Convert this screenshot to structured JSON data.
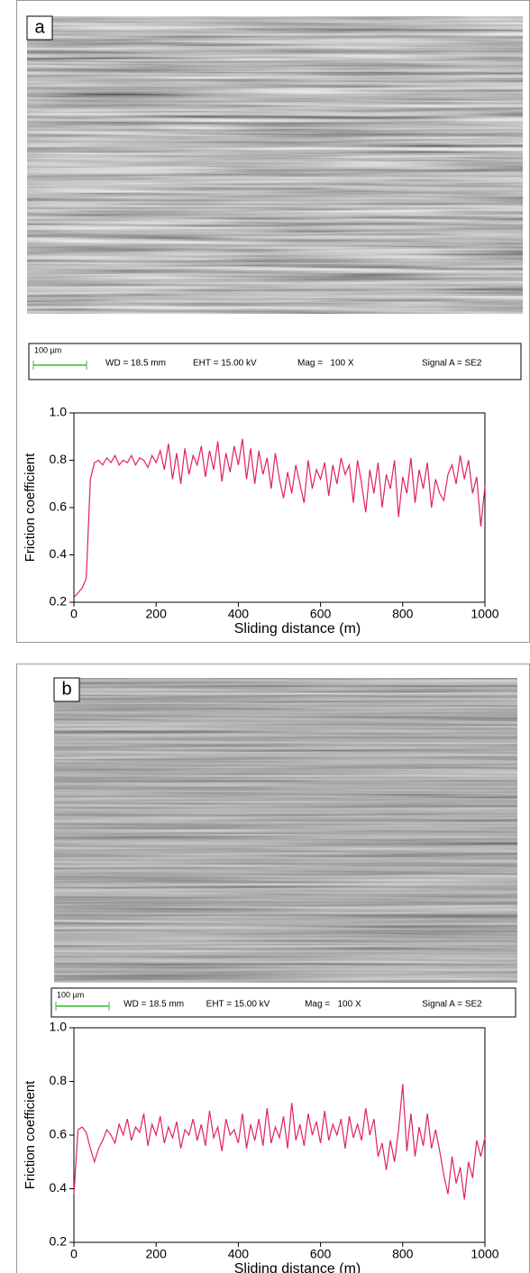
{
  "panels": [
    {
      "label": "a",
      "scale": "100 µm",
      "wd": "WD = 18.5 mm",
      "eht": "EHT = 15.00 kV",
      "mag": "Mag =   100 X",
      "signal": "Signal A = SE2"
    },
    {
      "label": "b",
      "scale": "100 µm",
      "wd": "WD = 18.5 mm",
      "eht": "EHT = 15.00 kV",
      "mag": "Mag =   100 X",
      "signal": "Signal A = SE2"
    }
  ],
  "chart_data": [
    {
      "type": "line",
      "y_label": "Friction coefficient",
      "x_label": "Sliding distance (m)",
      "color": "#e0206a",
      "xlim": [
        0,
        1000
      ],
      "ylim": [
        0.2,
        1
      ],
      "xticks": [
        0,
        200,
        400,
        600,
        800,
        1000
      ],
      "yticks": [
        0.2,
        0.4,
        0.6,
        0.8,
        {
          "value": 1,
          "label": "1.0"
        }
      ],
      "x": [
        0,
        10,
        20,
        30,
        40,
        50,
        60,
        70,
        80,
        90,
        100,
        110,
        120,
        130,
        140,
        150,
        160,
        170,
        180,
        190,
        200,
        210,
        220,
        230,
        240,
        250,
        260,
        270,
        280,
        290,
        300,
        310,
        320,
        330,
        340,
        350,
        360,
        370,
        380,
        390,
        400,
        410,
        420,
        430,
        440,
        450,
        460,
        470,
        480,
        490,
        500,
        510,
        520,
        530,
        540,
        550,
        560,
        570,
        580,
        590,
        600,
        610,
        620,
        630,
        640,
        650,
        660,
        670,
        680,
        690,
        700,
        710,
        720,
        730,
        740,
        750,
        760,
        770,
        780,
        790,
        800,
        810,
        820,
        830,
        840,
        850,
        860,
        870,
        880,
        890,
        900,
        910,
        920,
        930,
        940,
        950,
        960,
        970,
        980,
        990,
        1000
      ],
      "values": [
        0.22,
        0.24,
        0.26,
        0.3,
        0.72,
        0.79,
        0.8,
        0.78,
        0.81,
        0.79,
        0.82,
        0.78,
        0.8,
        0.79,
        0.82,
        0.78,
        0.81,
        0.8,
        0.77,
        0.82,
        0.79,
        0.84,
        0.76,
        0.87,
        0.72,
        0.83,
        0.7,
        0.85,
        0.74,
        0.82,
        0.78,
        0.86,
        0.73,
        0.84,
        0.76,
        0.88,
        0.71,
        0.83,
        0.75,
        0.86,
        0.78,
        0.89,
        0.72,
        0.85,
        0.7,
        0.84,
        0.74,
        0.81,
        0.68,
        0.83,
        0.72,
        0.64,
        0.75,
        0.66,
        0.78,
        0.7,
        0.62,
        0.8,
        0.68,
        0.76,
        0.72,
        0.79,
        0.65,
        0.78,
        0.7,
        0.81,
        0.74,
        0.78,
        0.62,
        0.8,
        0.7,
        0.58,
        0.76,
        0.66,
        0.79,
        0.6,
        0.74,
        0.68,
        0.8,
        0.56,
        0.73,
        0.66,
        0.81,
        0.62,
        0.76,
        0.68,
        0.79,
        0.6,
        0.72,
        0.66,
        0.63,
        0.74,
        0.78,
        0.7,
        0.82,
        0.72,
        0.8,
        0.66,
        0.73,
        0.52,
        0.69
      ]
    },
    {
      "type": "line",
      "y_label": "Friction coefficient",
      "x_label": "Sliding distance (m)",
      "color": "#e0206a",
      "xlim": [
        0,
        1000
      ],
      "ylim": [
        0.2,
        1
      ],
      "xticks": [
        0,
        200,
        400,
        600,
        800,
        1000
      ],
      "yticks": [
        0.2,
        0.4,
        0.6,
        0.8,
        {
          "value": 1,
          "label": "1.0"
        }
      ],
      "x": [
        0,
        10,
        20,
        30,
        40,
        50,
        60,
        70,
        80,
        90,
        100,
        110,
        120,
        130,
        140,
        150,
        160,
        170,
        180,
        190,
        200,
        210,
        220,
        230,
        240,
        250,
        260,
        270,
        280,
        290,
        300,
        310,
        320,
        330,
        340,
        350,
        360,
        370,
        380,
        390,
        400,
        410,
        420,
        430,
        440,
        450,
        460,
        470,
        480,
        490,
        500,
        510,
        520,
        530,
        540,
        550,
        560,
        570,
        580,
        590,
        600,
        610,
        620,
        630,
        640,
        650,
        660,
        670,
        680,
        690,
        700,
        710,
        720,
        730,
        740,
        750,
        760,
        770,
        780,
        790,
        800,
        810,
        820,
        830,
        840,
        850,
        860,
        870,
        880,
        890,
        900,
        910,
        920,
        930,
        940,
        950,
        960,
        970,
        980,
        990,
        1000
      ],
      "values": [
        0.38,
        0.62,
        0.63,
        0.61,
        0.55,
        0.5,
        0.55,
        0.58,
        0.62,
        0.6,
        0.57,
        0.64,
        0.6,
        0.66,
        0.58,
        0.63,
        0.61,
        0.68,
        0.56,
        0.64,
        0.6,
        0.67,
        0.57,
        0.63,
        0.59,
        0.65,
        0.55,
        0.62,
        0.6,
        0.66,
        0.58,
        0.64,
        0.56,
        0.69,
        0.59,
        0.63,
        0.54,
        0.66,
        0.6,
        0.62,
        0.57,
        0.68,
        0.55,
        0.64,
        0.58,
        0.66,
        0.56,
        0.7,
        0.57,
        0.63,
        0.59,
        0.67,
        0.55,
        0.72,
        0.58,
        0.64,
        0.56,
        0.68,
        0.6,
        0.65,
        0.57,
        0.69,
        0.58,
        0.64,
        0.6,
        0.66,
        0.55,
        0.67,
        0.59,
        0.64,
        0.58,
        0.7,
        0.6,
        0.66,
        0.52,
        0.57,
        0.47,
        0.58,
        0.5,
        0.62,
        0.79,
        0.54,
        0.68,
        0.52,
        0.63,
        0.56,
        0.68,
        0.55,
        0.62,
        0.54,
        0.45,
        0.38,
        0.52,
        0.42,
        0.48,
        0.36,
        0.5,
        0.44,
        0.58,
        0.52,
        0.59
      ]
    }
  ]
}
